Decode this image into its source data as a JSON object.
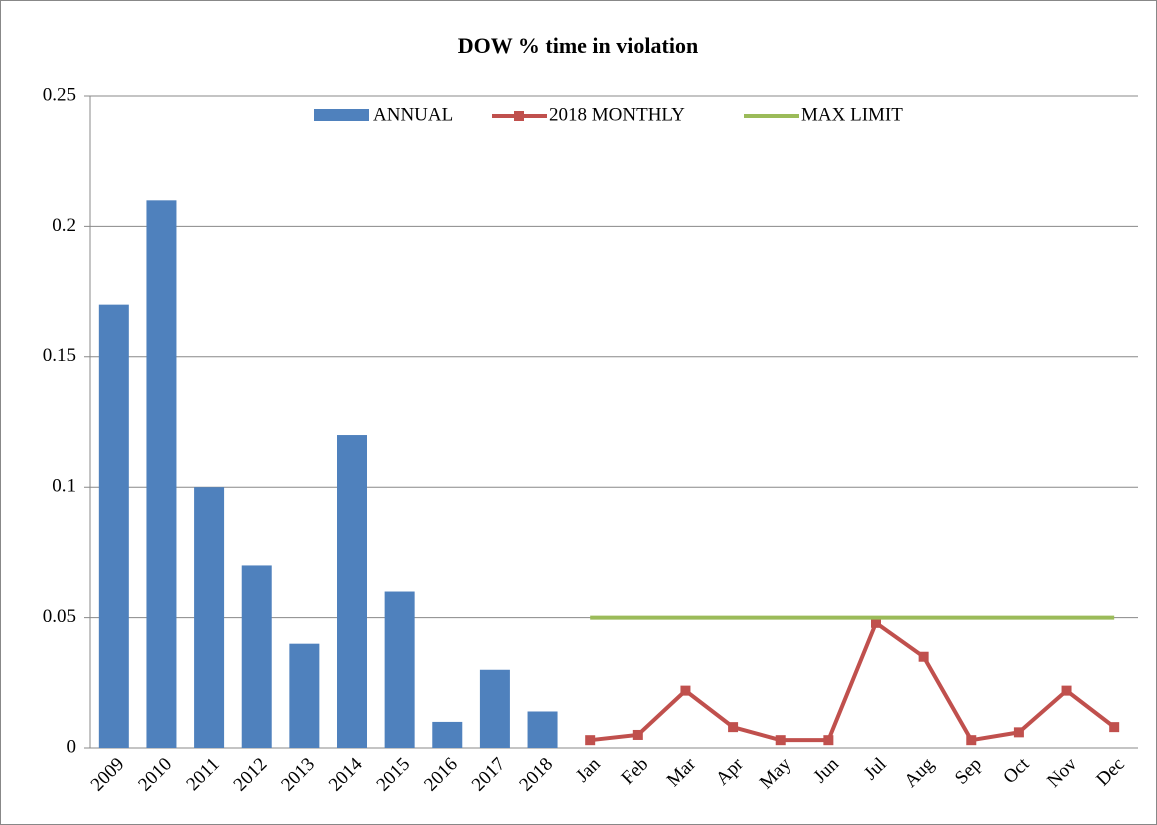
{
  "chart_data": {
    "type": "bar_line",
    "title": "DOW % time in violation",
    "categories": [
      "2009",
      "2010",
      "2011",
      "2012",
      "2013",
      "2014",
      "2015",
      "2016",
      "2017",
      "2018",
      "Jan",
      "Feb",
      "Mar",
      "Apr",
      "May",
      "Jun",
      "Jul",
      "Aug",
      "Sep",
      "Oct",
      "Nov",
      "Dec"
    ],
    "series": [
      {
        "name": "ANNUAL",
        "type": "bar",
        "color": "#4f81bd",
        "values": [
          0.17,
          0.21,
          0.1,
          0.07,
          0.04,
          0.12,
          0.06,
          0.01,
          0.03,
          0.014,
          null,
          null,
          null,
          null,
          null,
          null,
          null,
          null,
          null,
          null,
          null,
          null
        ]
      },
      {
        "name": "2018 MONTHLY",
        "type": "line",
        "marker": "square",
        "color": "#c0504d",
        "values": [
          null,
          null,
          null,
          null,
          null,
          null,
          null,
          null,
          null,
          null,
          0.003,
          0.005,
          0.022,
          0.008,
          0.003,
          0.003,
          0.048,
          0.035,
          0.003,
          0.006,
          0.022,
          0.008
        ]
      },
      {
        "name": "MAX LIMIT",
        "type": "line",
        "color": "#9bbb59",
        "values": [
          null,
          null,
          null,
          null,
          null,
          null,
          null,
          null,
          null,
          null,
          0.05,
          0.05,
          0.05,
          0.05,
          0.05,
          0.05,
          0.05,
          0.05,
          0.05,
          0.05,
          0.05,
          0.05
        ]
      }
    ],
    "ylim": [
      0,
      0.25
    ],
    "yticks": [
      0,
      0.05,
      0.1,
      0.15,
      0.2,
      0.25
    ],
    "grid": true,
    "legend": "top"
  }
}
